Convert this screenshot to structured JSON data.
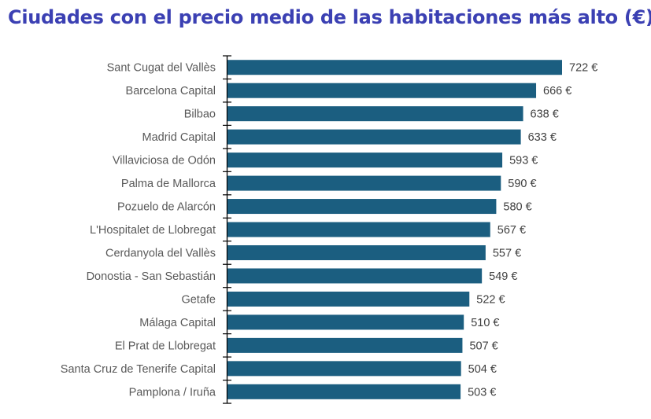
{
  "chart_data": {
    "type": "bar",
    "orientation": "horizontal",
    "title": "Ciudades con el precio medio de las habitaciones más alto (€)",
    "categories": [
      "Sant Cugat del Vallès",
      "Barcelona Capital",
      "Bilbao",
      "Madrid Capital",
      "Villaviciosa de Odón",
      "Palma de Mallorca",
      "Pozuelo de Alarcón",
      "L'Hospitalet de Llobregat",
      "Cerdanyola del Vallès",
      "Donostia - San Sebastián",
      "Getafe",
      "Málaga Capital",
      "El Prat de Llobregat",
      "Santa Cruz de Tenerife Capital",
      "Pamplona / Iruña"
    ],
    "values": [
      722,
      666,
      638,
      633,
      593,
      590,
      580,
      567,
      557,
      549,
      522,
      510,
      507,
      504,
      503
    ],
    "value_suffix": " €",
    "data_labels": [
      "722 €",
      "666 €",
      "638 €",
      "633 €",
      "593 €",
      "590 €",
      "580 €",
      "567 €",
      "557 €",
      "549 €",
      "522 €",
      "510 €",
      "507 €",
      "504 €",
      "503 €"
    ],
    "xlim": [
      0,
      722
    ],
    "grid": false,
    "colors": {
      "bar": "#1b5e80",
      "title": "#3b40b3"
    }
  }
}
